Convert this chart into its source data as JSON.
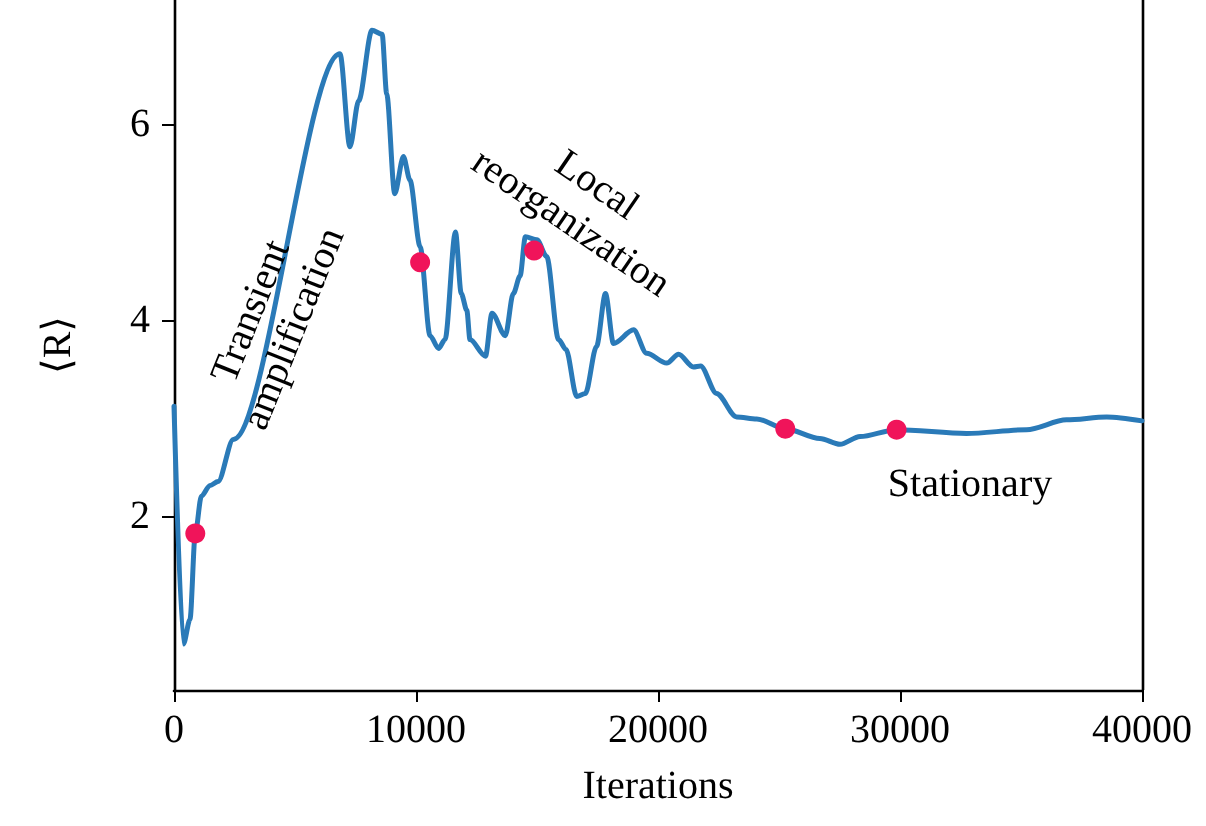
{
  "chart_data": {
    "type": "line",
    "xlabel": "Iterations",
    "ylabel": "⟨R⟩",
    "xlim": [
      0,
      40000
    ],
    "xticks": [
      0,
      10000,
      20000,
      30000,
      40000
    ],
    "ylim": [
      0.22,
      7.27
    ],
    "yticks": [
      2,
      4,
      6
    ],
    "grid": false,
    "marker": "none",
    "line_style": "solid",
    "annotations": [
      "Transient\namplification",
      "Local\nreorganization",
      "Stationary"
    ],
    "series": [
      {
        "type": "line",
        "color": "#2a7ab8",
        "x": [
          0,
          390,
          660,
          880,
          1130,
          1490,
          1820,
          2450,
          6860,
          7270,
          7630,
          8180,
          8600,
          8790,
          9120,
          9480,
          9750,
          10170,
          10580,
          10930,
          11200,
          11630,
          11870,
          12100,
          12230,
          12870,
          13140,
          13690,
          14020,
          14300,
          14520,
          15000,
          15400,
          15890,
          16200,
          16640,
          17000,
          17460,
          17830,
          18160,
          18990,
          19530,
          20360,
          20850,
          21460,
          21760,
          22420,
          23250,
          24080,
          25260,
          26690,
          27520,
          28350,
          29860,
          32750,
          35230,
          36880,
          38540,
          40000
        ],
        "values": [
          3.12,
          0.69,
          0.94,
          1.82,
          2.2,
          2.31,
          2.35,
          2.78,
          6.72,
          5.77,
          6.24,
          6.96,
          6.92,
          6.31,
          5.29,
          5.67,
          5.43,
          4.75,
          3.84,
          3.71,
          3.8,
          4.9,
          4.27,
          4.1,
          3.8,
          3.63,
          4.07,
          3.84,
          4.27,
          4.45,
          4.85,
          4.82,
          4.65,
          3.8,
          3.7,
          3.22,
          3.25,
          3.73,
          4.27,
          3.76,
          3.9,
          3.66,
          3.56,
          3.65,
          3.52,
          3.53,
          3.25,
          3.01,
          2.99,
          2.89,
          2.79,
          2.73,
          2.81,
          2.88,
          2.84,
          2.88,
          2.98,
          3.01,
          2.97
        ]
      },
      {
        "type": "scatter",
        "color": "#f0145a",
        "marker": "circle",
        "x": [
          880,
          10170,
          14880,
          25260,
          29860
        ],
        "values": [
          1.82,
          4.59,
          4.71,
          2.89,
          2.88
        ]
      }
    ]
  }
}
